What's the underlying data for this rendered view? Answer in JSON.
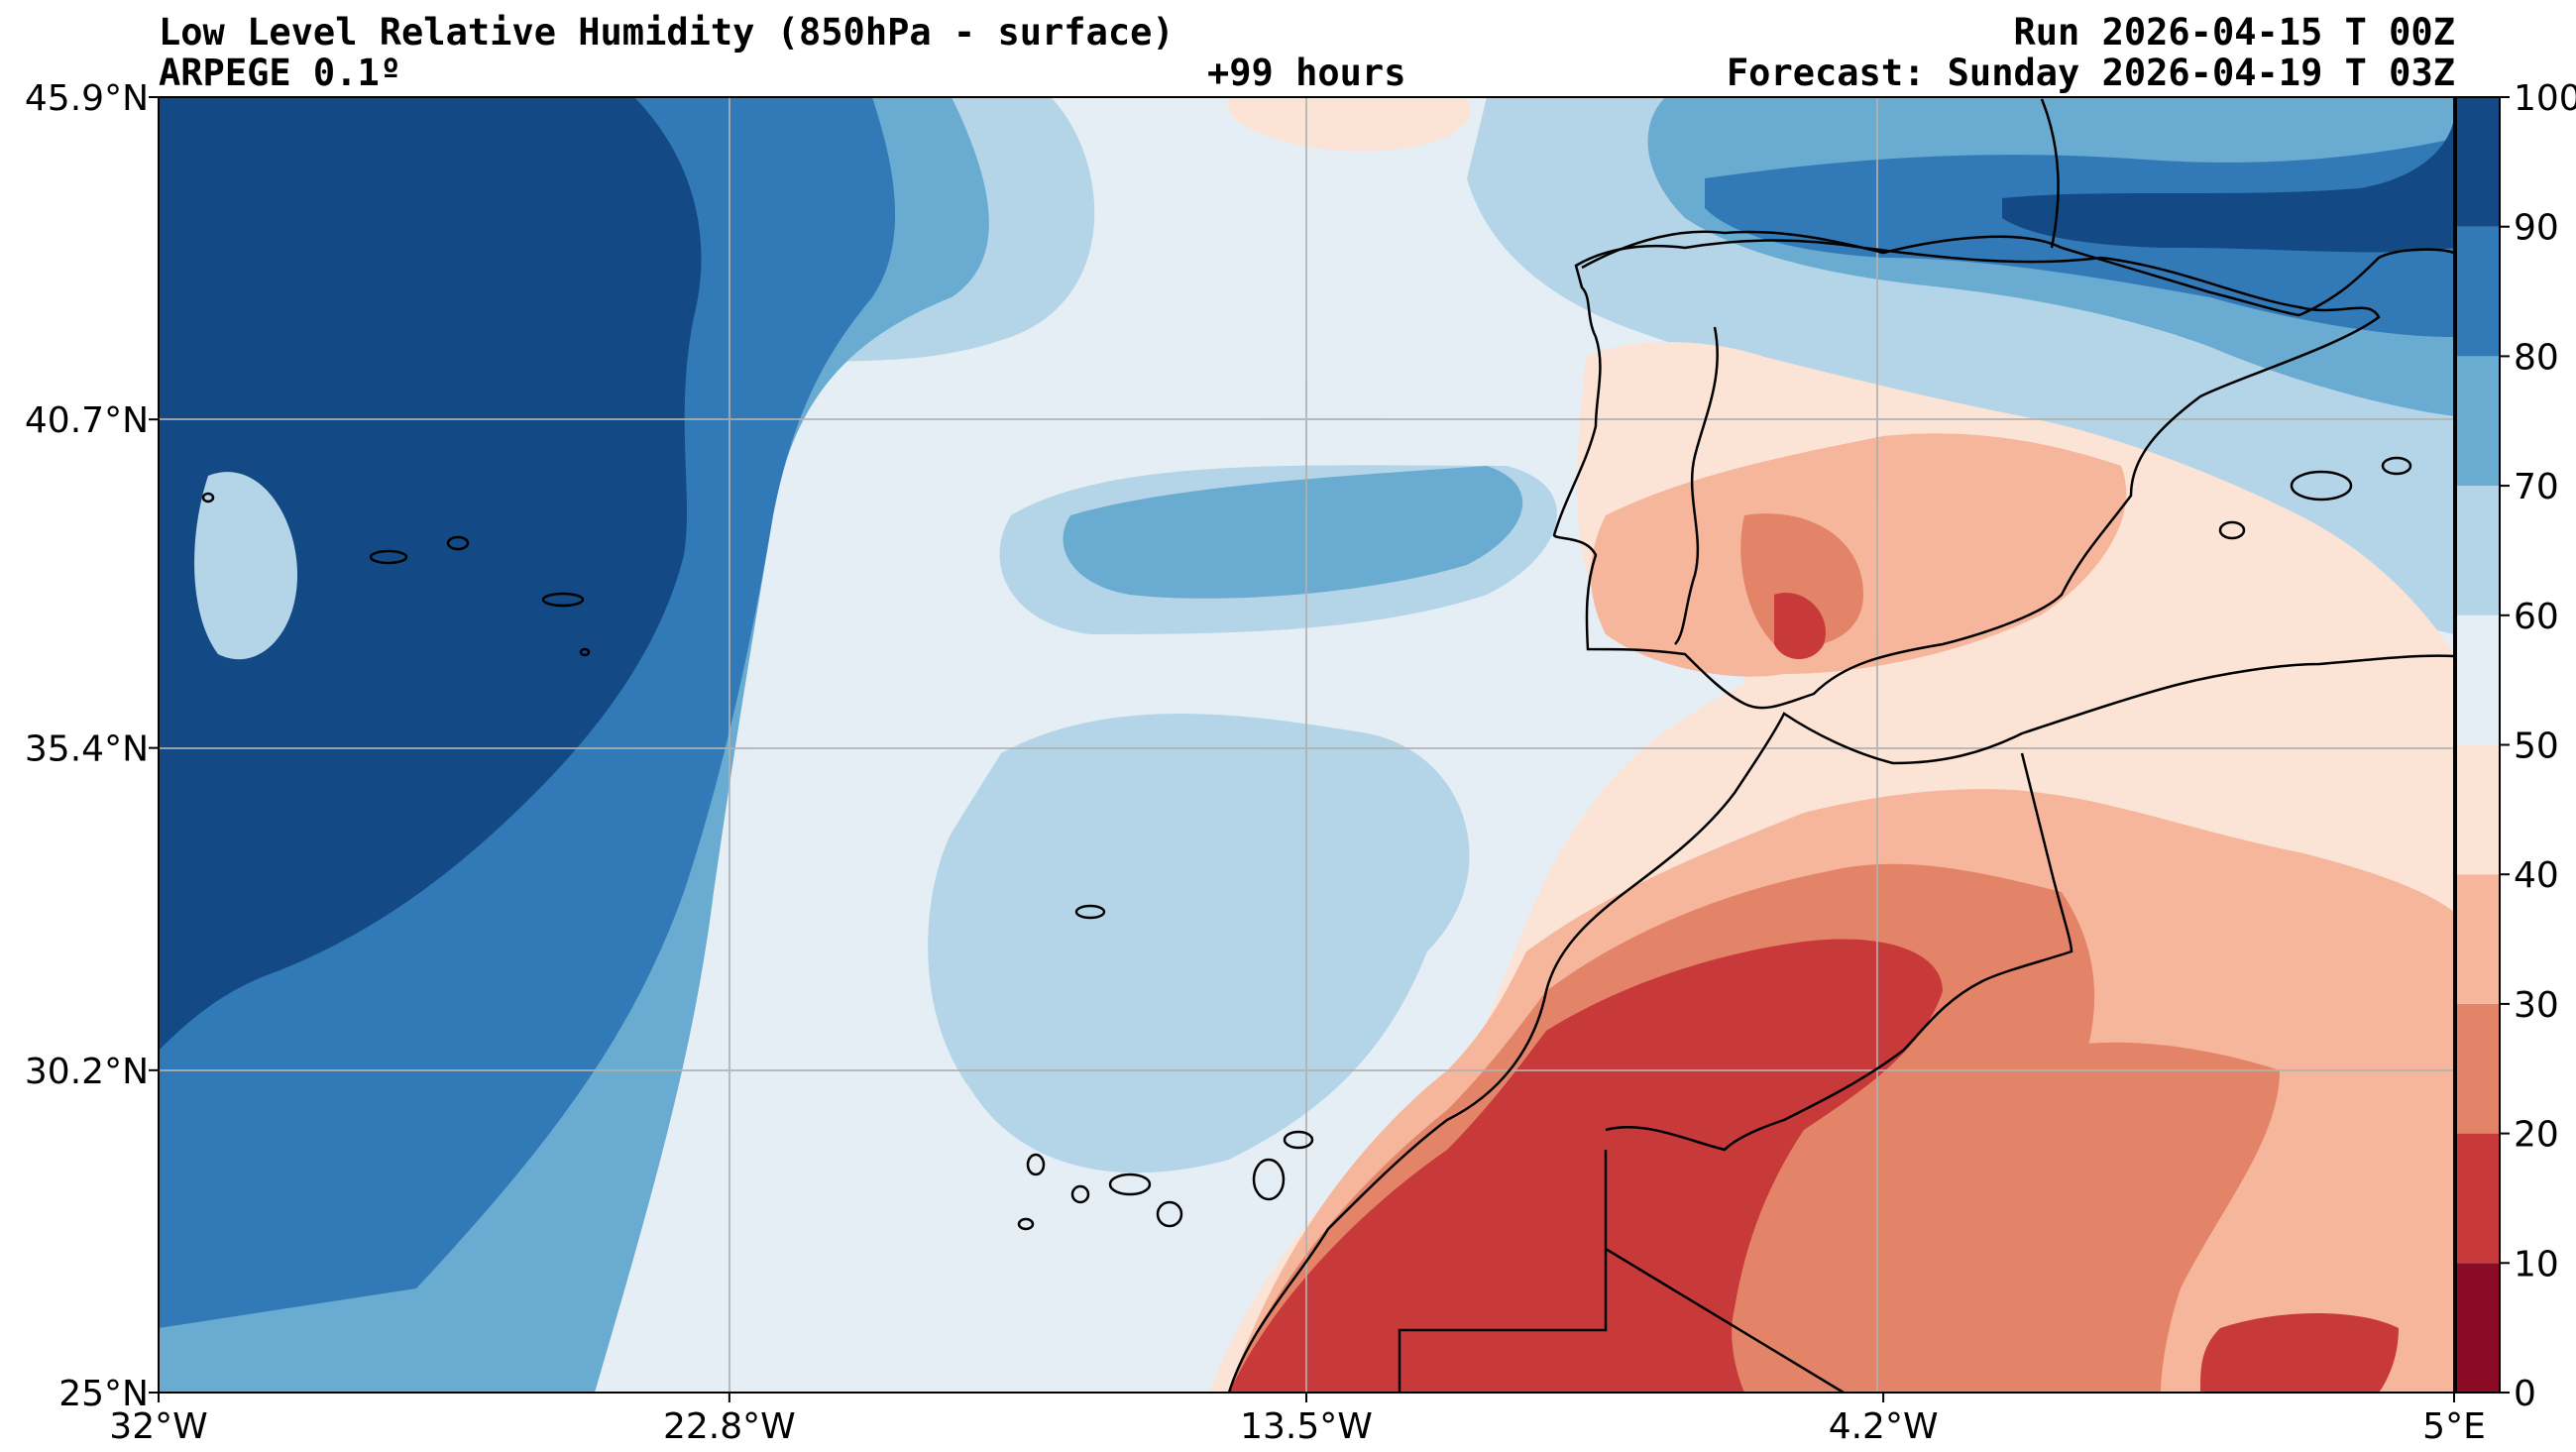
{
  "header": {
    "title": "Low Level Relative Humidity (850hPa - surface)",
    "model": "ARPEGE 0.1º",
    "run": "Run 2026-04-15 T 00Z",
    "lead": "+99 hours",
    "forecast": "Forecast: Sunday 2026-04-19 T 03Z"
  },
  "map": {
    "lon_range": [
      -32,
      5
    ],
    "lat_range": [
      25,
      45.9
    ],
    "lon_ticks": [
      {
        "value": -32,
        "label": "32°W"
      },
      {
        "value": -22.8,
        "label": "22.8°W"
      },
      {
        "value": -13.5,
        "label": "13.5°W"
      },
      {
        "value": -4.2,
        "label": "4.2°W"
      },
      {
        "value": 5,
        "label": "5°E"
      }
    ],
    "lat_ticks": [
      {
        "value": 45.9,
        "label": "45.9°N"
      },
      {
        "value": 40.7,
        "label": "40.7°N"
      },
      {
        "value": 35.4,
        "label": "35.4°N"
      },
      {
        "value": 30.2,
        "label": "30.2°N"
      },
      {
        "value": 25,
        "label": "25°N"
      }
    ]
  },
  "colorbar": {
    "levels": [
      {
        "min": 0,
        "max": 10,
        "color": "#8b0a26"
      },
      {
        "min": 10,
        "max": 20,
        "color": "#c8393a"
      },
      {
        "min": 20,
        "max": 30,
        "color": "#e38469"
      },
      {
        "min": 30,
        "max": 40,
        "color": "#f6b69b"
      },
      {
        "min": 40,
        "max": 50,
        "color": "#fbe3d6"
      },
      {
        "min": 50,
        "max": 60,
        "color": "#e6eef5"
      },
      {
        "min": 60,
        "max": 70,
        "color": "#b4d5e7"
      },
      {
        "min": 70,
        "max": 80,
        "color": "#6aabd1"
      },
      {
        "min": 80,
        "max": 90,
        "color": "#3279b7"
      },
      {
        "min": 90,
        "max": 100,
        "color": "#134a85"
      }
    ],
    "tick_labels": [
      "0",
      "10",
      "20",
      "30",
      "40",
      "50",
      "60",
      "70",
      "80",
      "90",
      "100"
    ]
  }
}
